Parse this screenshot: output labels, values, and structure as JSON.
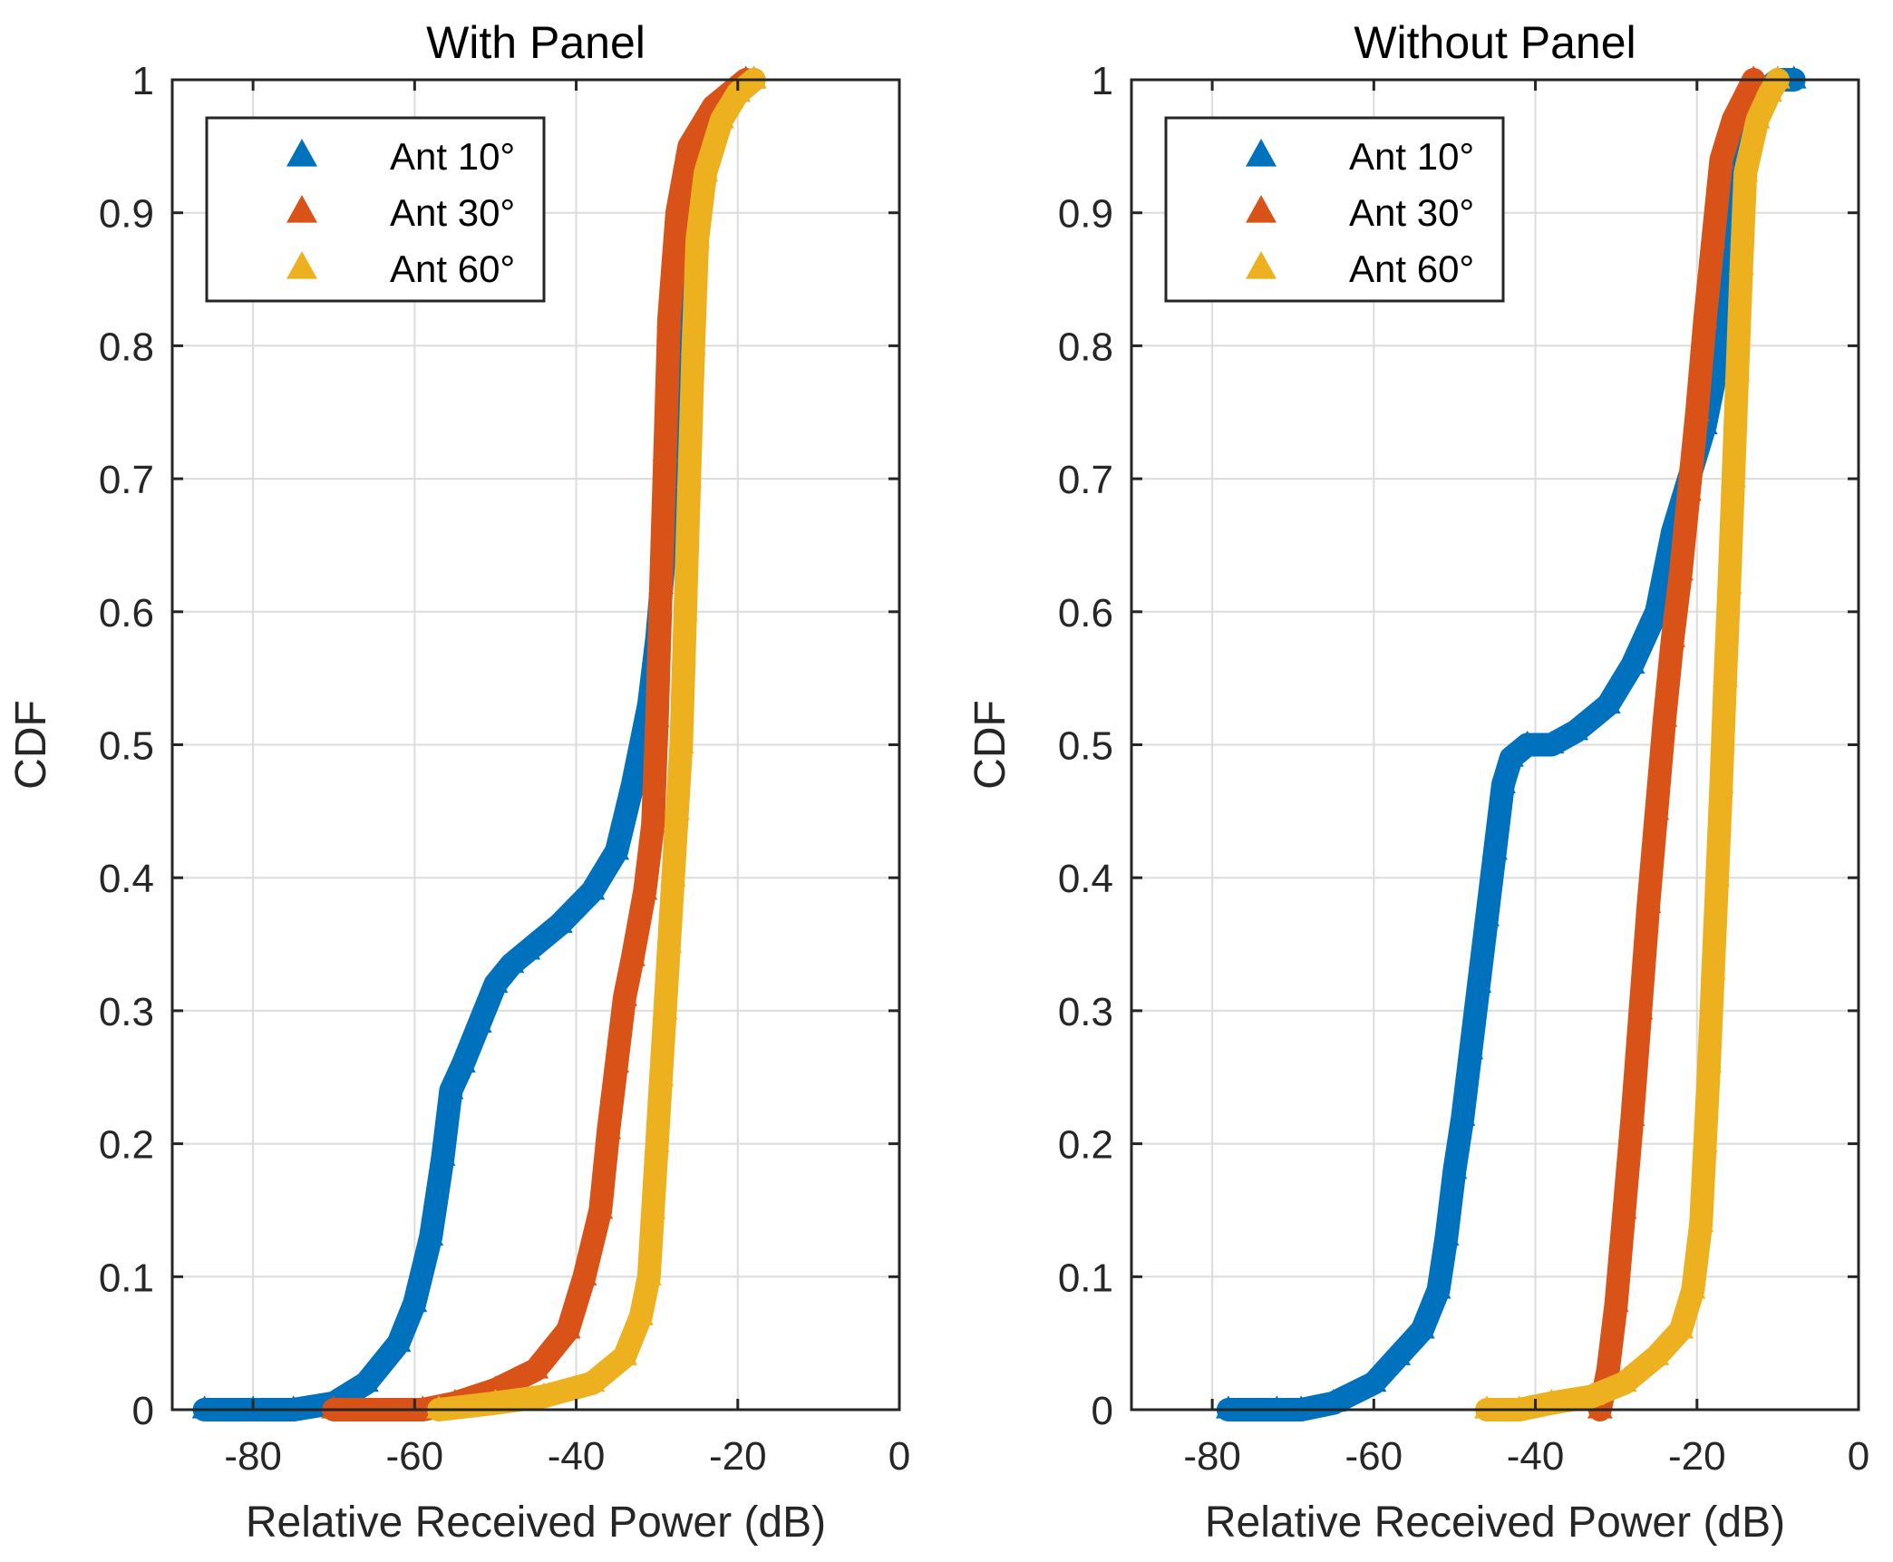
{
  "chart_data": [
    {
      "type": "line",
      "title": "With Panel",
      "xlabel": "Relative Received Power (dB)",
      "ylabel": "CDF",
      "xlim": [
        -90,
        0
      ],
      "ylim": [
        0,
        1
      ],
      "xticks": [
        -80,
        -60,
        -40,
        -20,
        0
      ],
      "yticks": [
        0,
        0.1,
        0.2,
        0.3,
        0.4,
        0.5,
        0.6,
        0.7,
        0.8,
        0.9,
        1
      ],
      "grid": true,
      "legend_position": "top-left",
      "series": [
        {
          "name": "Ant 10°",
          "color": "#0072BD",
          "points": [
            [
              -86,
              0
            ],
            [
              -80,
              0
            ],
            [
              -75,
              0
            ],
            [
              -70,
              0.005
            ],
            [
              -66,
              0.02
            ],
            [
              -62,
              0.05
            ],
            [
              -60,
              0.08
            ],
            [
              -58,
              0.13
            ],
            [
              -56.5,
              0.19
            ],
            [
              -55.5,
              0.24
            ],
            [
              -54,
              0.26
            ],
            [
              -52,
              0.29
            ],
            [
              -50,
              0.32
            ],
            [
              -48,
              0.335
            ],
            [
              -46,
              0.345
            ],
            [
              -42,
              0.365
            ],
            [
              -38,
              0.39
            ],
            [
              -35,
              0.42
            ],
            [
              -33,
              0.47
            ],
            [
              -31,
              0.53
            ],
            [
              -30,
              0.58
            ],
            [
              -29,
              0.65
            ],
            [
              -28.5,
              0.72
            ],
            [
              -27,
              0.85
            ],
            [
              -25,
              0.94
            ],
            [
              -22,
              0.98
            ],
            [
              -20,
              0.99
            ],
            [
              -18,
              1.0
            ]
          ]
        },
        {
          "name": "Ant 30°",
          "color": "#D95319",
          "points": [
            [
              -70,
              0
            ],
            [
              -59,
              0
            ],
            [
              -55,
              0.005
            ],
            [
              -50,
              0.015
            ],
            [
              -45,
              0.03
            ],
            [
              -41,
              0.06
            ],
            [
              -39,
              0.1
            ],
            [
              -37,
              0.15
            ],
            [
              -36,
              0.21
            ],
            [
              -35,
              0.26
            ],
            [
              -34,
              0.31
            ],
            [
              -33,
              0.34
            ],
            [
              -31.5,
              0.39
            ],
            [
              -30.5,
              0.44
            ],
            [
              -30,
              0.52
            ],
            [
              -29.5,
              0.62
            ],
            [
              -29,
              0.72
            ],
            [
              -28.5,
              0.82
            ],
            [
              -27.5,
              0.9
            ],
            [
              -26,
              0.95
            ],
            [
              -23,
              0.98
            ],
            [
              -21,
              0.99
            ],
            [
              -19,
              1.0
            ]
          ]
        },
        {
          "name": "Ant 60°",
          "color": "#EDB120",
          "points": [
            [
              -57,
              0
            ],
            [
              -50,
              0.005
            ],
            [
              -44,
              0.01
            ],
            [
              -38,
              0.02
            ],
            [
              -34,
              0.04
            ],
            [
              -32,
              0.07
            ],
            [
              -31,
              0.1
            ],
            [
              -30.5,
              0.15
            ],
            [
              -30,
              0.2
            ],
            [
              -29.5,
              0.25
            ],
            [
              -29,
              0.3
            ],
            [
              -28.5,
              0.35
            ],
            [
              -28,
              0.4
            ],
            [
              -27.5,
              0.45
            ],
            [
              -27,
              0.5
            ],
            [
              -26.5,
              0.6
            ],
            [
              -26,
              0.7
            ],
            [
              -25.5,
              0.8
            ],
            [
              -25,
              0.88
            ],
            [
              -24,
              0.93
            ],
            [
              -22,
              0.97
            ],
            [
              -20,
              0.99
            ],
            [
              -18,
              1.0
            ]
          ]
        }
      ]
    },
    {
      "type": "line",
      "title": "Without Panel",
      "xlabel": "Relative Received Power (dB)",
      "ylabel": "CDF",
      "xlim": [
        -90,
        0
      ],
      "ylim": [
        0,
        1
      ],
      "xticks": [
        -80,
        -60,
        -40,
        -20,
        0
      ],
      "yticks": [
        0,
        0.1,
        0.2,
        0.3,
        0.4,
        0.5,
        0.6,
        0.7,
        0.8,
        0.9,
        1
      ],
      "grid": true,
      "legend_position": "top-left",
      "series": [
        {
          "name": "Ant 10°",
          "color": "#0072BD",
          "points": [
            [
              -78,
              0
            ],
            [
              -72,
              0
            ],
            [
              -69,
              0
            ],
            [
              -65,
              0.005
            ],
            [
              -60,
              0.02
            ],
            [
              -57,
              0.04
            ],
            [
              -54,
              0.06
            ],
            [
              -52,
              0.09
            ],
            [
              -51,
              0.13
            ],
            [
              -50,
              0.18
            ],
            [
              -49,
              0.22
            ],
            [
              -48,
              0.27
            ],
            [
              -47,
              0.32
            ],
            [
              -46,
              0.37
            ],
            [
              -45,
              0.42
            ],
            [
              -44,
              0.47
            ],
            [
              -43,
              0.49
            ],
            [
              -41,
              0.5
            ],
            [
              -38,
              0.5
            ],
            [
              -35,
              0.51
            ],
            [
              -31,
              0.53
            ],
            [
              -28,
              0.56
            ],
            [
              -25,
              0.6
            ],
            [
              -23,
              0.66
            ],
            [
              -21,
              0.7
            ],
            [
              -19,
              0.74
            ],
            [
              -17,
              0.8
            ],
            [
              -15.5,
              0.88
            ],
            [
              -14,
              0.96
            ],
            [
              -12,
              0.99
            ],
            [
              -10,
              1.0
            ],
            [
              -8,
              1.0
            ]
          ]
        },
        {
          "name": "Ant 30°",
          "color": "#D95319",
          "points": [
            [
              -32,
              0
            ],
            [
              -31,
              0.03
            ],
            [
              -30,
              0.08
            ],
            [
              -29,
              0.15
            ],
            [
              -28,
              0.22
            ],
            [
              -27,
              0.3
            ],
            [
              -26,
              0.38
            ],
            [
              -25,
              0.45
            ],
            [
              -24,
              0.52
            ],
            [
              -23,
              0.58
            ],
            [
              -22,
              0.63
            ],
            [
              -21,
              0.69
            ],
            [
              -20,
              0.75
            ],
            [
              -19,
              0.82
            ],
            [
              -18,
              0.88
            ],
            [
              -17,
              0.94
            ],
            [
              -15.5,
              0.97
            ],
            [
              -13,
              1.0
            ]
          ]
        },
        {
          "name": "Ant 60°",
          "color": "#EDB120",
          "points": [
            [
              -46,
              0
            ],
            [
              -42,
              0
            ],
            [
              -38,
              0.005
            ],
            [
              -33,
              0.01
            ],
            [
              -29,
              0.02
            ],
            [
              -25,
              0.04
            ],
            [
              -22,
              0.06
            ],
            [
              -20.5,
              0.09
            ],
            [
              -19.5,
              0.14
            ],
            [
              -19,
              0.2
            ],
            [
              -18.5,
              0.26
            ],
            [
              -18,
              0.33
            ],
            [
              -17.5,
              0.4
            ],
            [
              -17,
              0.47
            ],
            [
              -16.5,
              0.55
            ],
            [
              -16,
              0.62
            ],
            [
              -15.5,
              0.7
            ],
            [
              -15,
              0.78
            ],
            [
              -14.5,
              0.86
            ],
            [
              -14,
              0.93
            ],
            [
              -12.5,
              0.97
            ],
            [
              -11,
              0.99
            ],
            [
              -10,
              1.0
            ]
          ]
        }
      ]
    }
  ]
}
